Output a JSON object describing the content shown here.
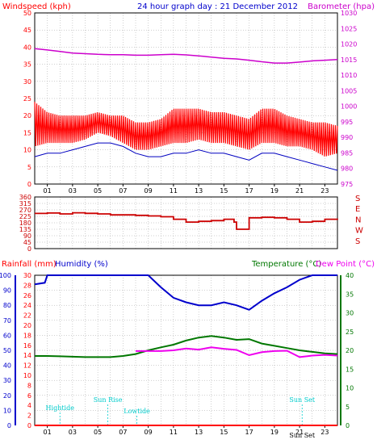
{
  "colors": {
    "wind": "#ff0000",
    "gust": "#ff0000",
    "avgwind": "#0000c0",
    "barometer": "#cc00cc",
    "winddir": "#cc0000",
    "rainfall": "#ff0000",
    "humidity": "#0000cc",
    "temperature": "#007700",
    "dewpoint": "#ee00ee",
    "sun": "#00cccc",
    "grid": "#a0a0a0",
    "frame": "#000000"
  },
  "chart_data": [
    {
      "type": "line",
      "title": "24 hour graph day : 21 December 2012",
      "left_label": "Windspeed (kph)",
      "right_label": "Barometer (hpa)",
      "x_ticks": [
        "01",
        "03",
        "05",
        "07",
        "09",
        "11",
        "13",
        "15",
        "17",
        "19",
        "21",
        "23"
      ],
      "y_left_ticks": [
        0,
        5,
        10,
        15,
        20,
        25,
        30,
        35,
        40,
        45,
        50
      ],
      "y_left_range": [
        0,
        50
      ],
      "y_right_ticks": [
        975,
        980,
        985,
        990,
        995,
        1000,
        1005,
        1010,
        1015,
        1020,
        1025,
        1030
      ],
      "y_right_range": [
        975,
        1030
      ],
      "x_range": [
        0,
        24
      ],
      "grid": true,
      "series": [
        {
          "role": "wind-gust",
          "x": [
            0,
            1,
            2,
            3,
            4,
            5,
            6,
            7,
            8,
            9,
            10,
            11,
            12,
            13,
            14,
            15,
            16,
            17,
            18,
            19,
            20,
            21,
            22,
            23,
            24
          ],
          "y_min": [
            11,
            12,
            12,
            12,
            13,
            15,
            14,
            12,
            10,
            10,
            11,
            12,
            12,
            13,
            12,
            12,
            11,
            10,
            12,
            12,
            11,
            11,
            10,
            8,
            9
          ],
          "y_max": [
            24,
            21,
            20,
            20,
            20,
            21,
            20,
            20,
            18,
            18,
            19,
            22,
            22,
            22,
            21,
            21,
            20,
            19,
            22,
            22,
            20,
            19,
            18,
            18,
            17
          ]
        },
        {
          "role": "wind-average",
          "x": [
            0,
            1,
            2,
            3,
            4,
            5,
            6,
            7,
            8,
            9,
            10,
            11,
            12,
            13,
            14,
            15,
            16,
            17,
            18,
            19,
            20,
            21,
            22,
            23,
            24
          ],
          "y": [
            8,
            9,
            9,
            10,
            11,
            12,
            12,
            11,
            9,
            8,
            8,
            9,
            9,
            10,
            9,
            9,
            8,
            7,
            9,
            9,
            8,
            7,
            6,
            5,
            4
          ]
        },
        {
          "role": "barometer",
          "axis": "right",
          "x": [
            0,
            1,
            2,
            3,
            4,
            5,
            6,
            7,
            8,
            9,
            10,
            11,
            12,
            13,
            14,
            15,
            16,
            17,
            18,
            19,
            20,
            21,
            22,
            23,
            24
          ],
          "y": [
            1018.5,
            1018.1,
            1017.6,
            1017.1,
            1016.9,
            1016.7,
            1016.6,
            1016.6,
            1016.4,
            1016.4,
            1016.6,
            1016.7,
            1016.5,
            1016.2,
            1015.8,
            1015.4,
            1015.2,
            1014.8,
            1014.3,
            1013.9,
            1013.9,
            1014.2,
            1014.6,
            1014.8,
            1015.0
          ]
        }
      ]
    },
    {
      "type": "line",
      "role": "wind-direction",
      "y_left_ticks": [
        0,
        45,
        90,
        135,
        180,
        225,
        270,
        315,
        360
      ],
      "y_range": [
        0,
        360
      ],
      "right_ticks": [
        "S",
        "E",
        "N",
        "W",
        "S"
      ],
      "x_range": [
        0,
        24
      ],
      "grid": true,
      "series": [
        {
          "role": "direction",
          "x": [
            0,
            1,
            2,
            3,
            4,
            5,
            6,
            7,
            8,
            9,
            10,
            11,
            12,
            13,
            14,
            15,
            15.8,
            16,
            17,
            18,
            19,
            20,
            21,
            22,
            23,
            24
          ],
          "y": [
            245,
            248,
            242,
            250,
            246,
            242,
            235,
            235,
            232,
            228,
            222,
            205,
            185,
            190,
            195,
            205,
            185,
            135,
            215,
            218,
            215,
            205,
            185,
            190,
            205,
            200
          ]
        }
      ]
    },
    {
      "type": "line",
      "left_label_1": "Rainfall (mm)",
      "left_label_2": "Humidity (%)",
      "right_label_1": "Temperature (°C)",
      "right_label_2": "Dew Point (°C)",
      "x_ticks": [
        "01",
        "03",
        "05",
        "07",
        "09",
        "11",
        "13",
        "15",
        "17",
        "19",
        "21",
        "23"
      ],
      "y_humidity_ticks": [
        0,
        10,
        20,
        30,
        40,
        50,
        60,
        70,
        80,
        90,
        100
      ],
      "y_rain_ticks": [
        0,
        2,
        4,
        6,
        8,
        10,
        12,
        14,
        16,
        18,
        20,
        22,
        24,
        26,
        28,
        30
      ],
      "y_temp_ticks": [
        0,
        5,
        10,
        15,
        20,
        25,
        30,
        35,
        40
      ],
      "y_humidity_range": [
        0,
        100
      ],
      "y_temp_range": [
        0,
        40
      ],
      "x_range": [
        0,
        24
      ],
      "grid": true,
      "annotations": [
        {
          "text": "Hightide",
          "x": 2.0
        },
        {
          "text": "Sun Rise",
          "x": 5.8
        },
        {
          "text": "Lowtide",
          "x": 8.1
        },
        {
          "text": "Sun Set",
          "x": 21.2
        },
        {
          "text": "Sun Set",
          "x": 21.2
        }
      ],
      "series": [
        {
          "role": "humidity",
          "x": [
            0,
            0.8,
            1,
            2,
            3,
            4,
            5,
            6,
            7,
            8,
            9,
            10,
            11,
            12,
            13,
            14,
            15,
            16,
            17,
            18,
            19,
            20,
            21,
            22,
            23,
            24
          ],
          "y": [
            94,
            95,
            100,
            100,
            100,
            100,
            100,
            100,
            100,
            100,
            100,
            92,
            85,
            82,
            80,
            80,
            82,
            80,
            77,
            83,
            88,
            92,
            97,
            100,
            100,
            100
          ]
        },
        {
          "role": "temperature",
          "axis": "temp",
          "x": [
            0,
            1,
            2,
            3,
            4,
            5,
            6,
            7,
            8,
            9,
            10,
            11,
            12,
            13,
            14,
            15,
            16,
            17,
            18,
            19,
            20,
            21,
            22,
            23,
            24
          ],
          "y": [
            18.5,
            18.5,
            18.4,
            18.3,
            18.2,
            18.2,
            18.2,
            18.5,
            19.0,
            20.0,
            20.8,
            21.5,
            22.6,
            23.4,
            23.8,
            23.4,
            22.8,
            23.0,
            21.8,
            21.2,
            20.6,
            20.0,
            19.6,
            19.2,
            19.0
          ]
        },
        {
          "role": "dewpoint",
          "axis": "temp",
          "x": [
            8,
            9,
            10,
            11,
            12,
            13,
            14,
            15,
            16,
            17,
            18,
            19,
            20,
            21,
            22,
            23,
            24
          ],
          "y": [
            19.8,
            19.8,
            19.8,
            20.0,
            20.5,
            20.2,
            20.8,
            20.4,
            20.1,
            18.7,
            19.5,
            19.8,
            19.9,
            18.2,
            18.6,
            18.8,
            18.6
          ]
        },
        {
          "role": "rainfall",
          "x": [
            0,
            24
          ],
          "y": [
            0,
            0
          ]
        }
      ]
    }
  ]
}
